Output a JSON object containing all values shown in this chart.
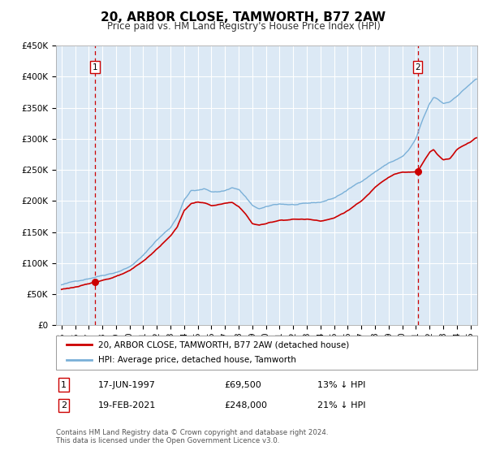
{
  "title": "20, ARBOR CLOSE, TAMWORTH, B77 2AW",
  "subtitle": "Price paid vs. HM Land Registry's House Price Index (HPI)",
  "ylim": [
    0,
    450000
  ],
  "xlim_start": 1994.6,
  "xlim_end": 2025.5,
  "background_color": "#ffffff",
  "plot_bg_color": "#dce9f5",
  "grid_color": "#ffffff",
  "hpi_line_color": "#7ab0d8",
  "price_line_color": "#cc0000",
  "vline_color": "#cc0000",
  "ytick_labels": [
    "£0",
    "£50K",
    "£100K",
    "£150K",
    "£200K",
    "£250K",
    "£300K",
    "£350K",
    "£400K",
    "£450K"
  ],
  "ytick_values": [
    0,
    50000,
    100000,
    150000,
    200000,
    250000,
    300000,
    350000,
    400000,
    450000
  ],
  "legend1_text": "20, ARBOR CLOSE, TAMWORTH, B77 2AW (detached house)",
  "legend2_text": "HPI: Average price, detached house, Tamworth",
  "marker1_date": 1997.458,
  "marker1_price": 69500,
  "marker2_date": 2021.125,
  "marker2_price": 248000,
  "annotation1_label": "1",
  "annotation2_label": "2",
  "info1_num": "1",
  "info1_date": "17-JUN-1997",
  "info1_price": "£69,500",
  "info1_hpi": "13% ↓ HPI",
  "info2_num": "2",
  "info2_date": "19-FEB-2021",
  "info2_price": "£248,000",
  "info2_hpi": "21% ↓ HPI",
  "footnote1": "Contains HM Land Registry data © Crown copyright and database right 2024.",
  "footnote2": "This data is licensed under the Open Government Licence v3.0."
}
